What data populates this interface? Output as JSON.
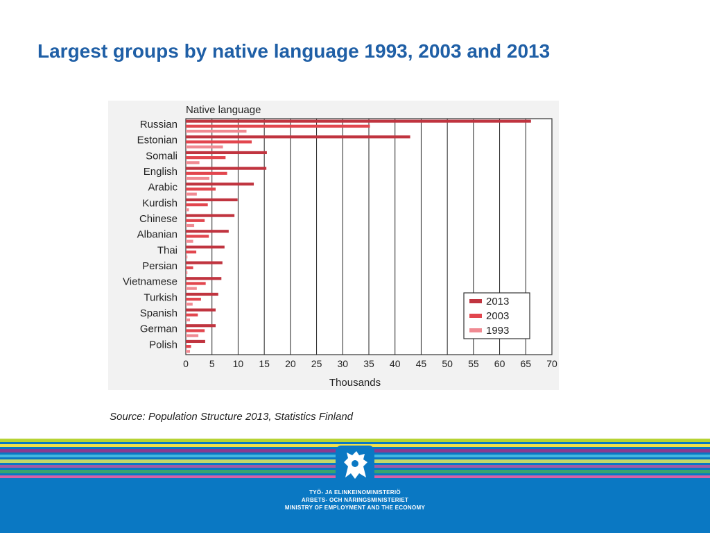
{
  "slide": {
    "title": "Largest groups by native language 1993, 2003 and 2013",
    "source": "Source: Population Structure 2013, Statistics Finland"
  },
  "footer": {
    "ministry_lines": [
      "TYÖ- JA ELINKEINOMINISTERIÖ",
      "ARBETS- OCH NÄRINGSMINISTERIET",
      "MINISTRY OF EMPLOYMENT AND THE ECONOMY"
    ],
    "emblem": "lion-emblem-icon",
    "stripe_colors": [
      "#b6d334",
      "#f2e14b",
      "#8a3b8f",
      "#43b7e0",
      "#c2d96a",
      "#9f5aa6",
      "#3aa36e",
      "#d95fa6"
    ]
  },
  "chart_data": {
    "type": "bar",
    "orientation": "horizontal",
    "title": "Native language",
    "xlabel": "Thousands",
    "ylabel": "",
    "xlim": [
      0,
      70
    ],
    "xticks": [
      0,
      5,
      10,
      15,
      20,
      25,
      30,
      35,
      40,
      45,
      50,
      55,
      60,
      65,
      70
    ],
    "grid": "vertical",
    "legend_position": "bottom-right",
    "categories": [
      "Russian",
      "Estonian",
      "Somali",
      "English",
      "Arabic",
      "Kurdish",
      "Chinese",
      "Albanian",
      "Thai",
      "Persian",
      "Vietnamese",
      "Turkish",
      "Spanish",
      "German",
      "Polish"
    ],
    "series": [
      {
        "name": "2013",
        "color": "#c0343f",
        "values": [
          66.0,
          42.9,
          15.5,
          15.4,
          13.0,
          9.9,
          9.3,
          8.2,
          7.4,
          7.0,
          6.8,
          6.2,
          5.7,
          5.7,
          3.7
        ]
      },
      {
        "name": "2003",
        "color": "#e2464e",
        "values": [
          35.2,
          12.6,
          7.6,
          7.9,
          5.7,
          4.2,
          3.6,
          4.4,
          2.0,
          1.4,
          3.8,
          2.9,
          2.3,
          3.6,
          1.0
        ]
      },
      {
        "name": "1993",
        "color": "#f08a92",
        "values": [
          11.6,
          7.1,
          2.6,
          4.5,
          2.1,
          0.6,
          1.6,
          1.4,
          0.3,
          0.3,
          2.1,
          1.3,
          0.8,
          2.4,
          0.8
        ]
      }
    ]
  }
}
